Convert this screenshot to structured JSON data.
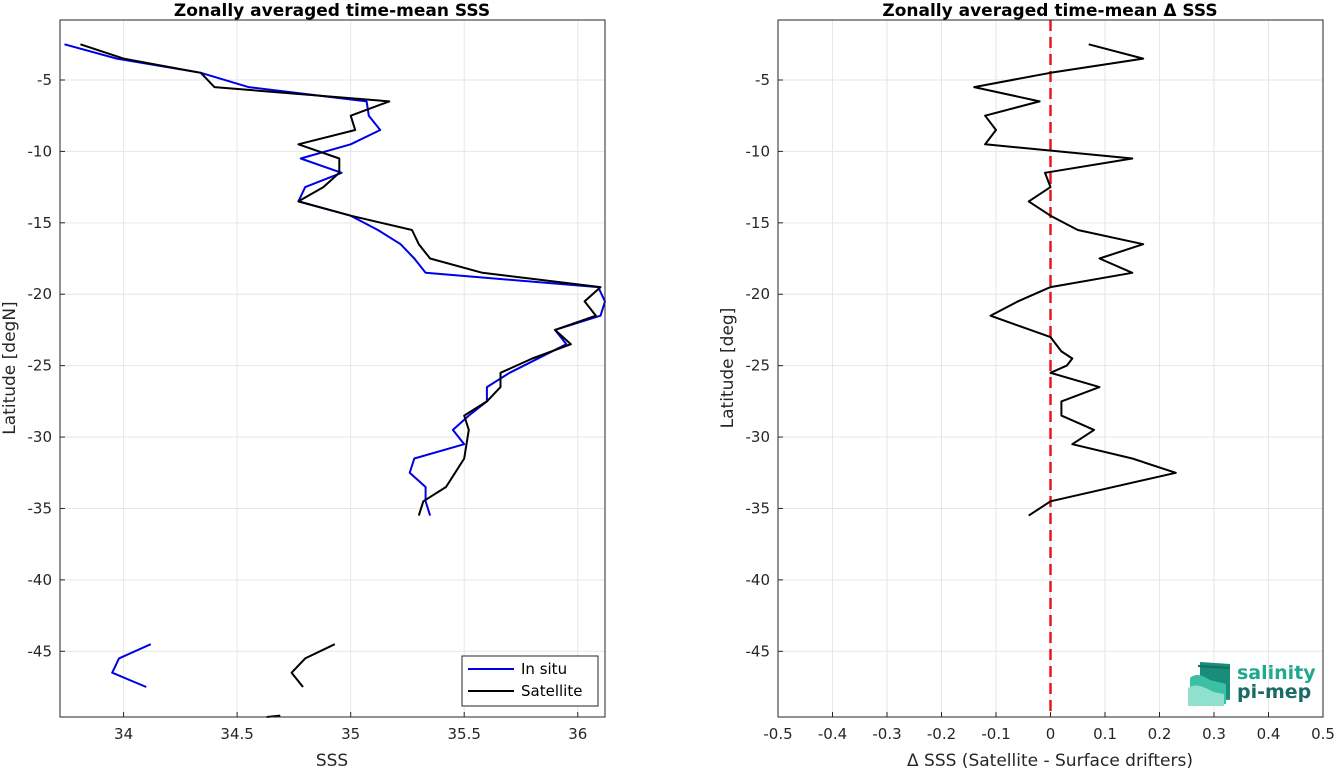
{
  "chart_data": [
    {
      "type": "line",
      "title": "Zonally averaged time-mean SSS",
      "xlabel": "SSS",
      "ylabel": "Latitude [degN]",
      "xlim": [
        33.72,
        36.12
      ],
      "ylim": [
        -49.6,
        -0.8
      ],
      "xticks": [
        34,
        34.5,
        35,
        35.5,
        36
      ],
      "xtick_labels": [
        "34",
        "34.5",
        "35",
        "35.5",
        "36"
      ],
      "yticks": [
        -5,
        -10,
        -15,
        -20,
        -25,
        -30,
        -35,
        -40,
        -45
      ],
      "ytick_labels": [
        "-5",
        "-10",
        "-15",
        "-20",
        "-25",
        "-30",
        "-35",
        "-40",
        "-45"
      ],
      "grid": true,
      "legend_position": "bottom-right",
      "series": [
        {
          "name": "In situ",
          "color": "#0000e6",
          "segments": [
            [
              [
                33.74,
                -2.5
              ],
              [
                33.97,
                -3.5
              ],
              [
                34.34,
                -4.5
              ],
              [
                34.55,
                -5.5
              ],
              [
                35.07,
                -6.5
              ],
              [
                35.08,
                -7.5
              ],
              [
                35.13,
                -8.5
              ],
              [
                35.0,
                -9.5
              ],
              [
                34.78,
                -10.5
              ],
              [
                34.96,
                -11.5
              ],
              [
                34.8,
                -12.5
              ],
              [
                34.77,
                -13.5
              ],
              [
                35.0,
                -14.5
              ],
              [
                35.12,
                -15.5
              ],
              [
                35.22,
                -16.5
              ],
              [
                35.28,
                -17.5
              ],
              [
                35.33,
                -18.5
              ],
              [
                36.09,
                -19.5
              ],
              [
                36.12,
                -20.5
              ],
              [
                36.1,
                -21.5
              ],
              [
                35.9,
                -22.5
              ],
              [
                35.95,
                -23.5
              ],
              [
                35.7,
                -25.5
              ],
              [
                35.6,
                -26.5
              ],
              [
                35.6,
                -27.5
              ],
              [
                35.52,
                -28.5
              ],
              [
                35.45,
                -29.5
              ],
              [
                35.5,
                -30.5
              ],
              [
                35.28,
                -31.5
              ],
              [
                35.26,
                -32.5
              ],
              [
                35.33,
                -33.5
              ],
              [
                35.33,
                -34.5
              ],
              [
                35.35,
                -35.5
              ]
            ],
            [
              [
                34.12,
                -44.5
              ],
              [
                33.98,
                -45.5
              ],
              [
                33.95,
                -46.5
              ],
              [
                34.1,
                -47.5
              ]
            ]
          ]
        },
        {
          "name": "Satellite",
          "color": "#000000",
          "segments": [
            [
              [
                33.81,
                -2.5
              ],
              [
                34.0,
                -3.5
              ],
              [
                34.34,
                -4.5
              ],
              [
                34.4,
                -5.5
              ],
              [
                35.17,
                -6.5
              ],
              [
                35.0,
                -7.5
              ],
              [
                35.02,
                -8.5
              ],
              [
                34.77,
                -9.5
              ],
              [
                34.95,
                -10.5
              ],
              [
                34.95,
                -11.5
              ],
              [
                34.88,
                -12.5
              ],
              [
                34.77,
                -13.5
              ],
              [
                35.0,
                -14.5
              ],
              [
                35.27,
                -15.5
              ],
              [
                35.3,
                -16.5
              ],
              [
                35.35,
                -17.5
              ],
              [
                35.58,
                -18.5
              ],
              [
                36.1,
                -19.5
              ],
              [
                36.03,
                -20.5
              ],
              [
                36.08,
                -21.5
              ],
              [
                35.9,
                -22.5
              ],
              [
                35.97,
                -23.5
              ],
              [
                35.8,
                -24.5
              ],
              [
                35.66,
                -25.5
              ],
              [
                35.66,
                -26.5
              ],
              [
                35.6,
                -27.5
              ],
              [
                35.5,
                -28.5
              ],
              [
                35.52,
                -29.5
              ],
              [
                35.51,
                -30.5
              ],
              [
                35.5,
                -31.5
              ],
              [
                35.46,
                -32.5
              ],
              [
                35.42,
                -33.5
              ],
              [
                35.32,
                -34.5
              ],
              [
                35.3,
                -35.5
              ]
            ],
            [
              [
                34.93,
                -44.5
              ],
              [
                34.8,
                -45.5
              ],
              [
                34.74,
                -46.5
              ],
              [
                34.79,
                -47.5
              ]
            ],
            [
              [
                34.69,
                -49.5
              ],
              [
                34.63,
                -49.9
              ]
            ]
          ]
        }
      ]
    },
    {
      "type": "line",
      "title": "Zonally averaged time-mean Δ SSS",
      "xlabel": "Δ SSS (Satellite - Surface drifters)",
      "ylabel": "Latitude [deg]",
      "xlim": [
        -0.5,
        0.5
      ],
      "ylim": [
        -49.6,
        -0.8
      ],
      "xticks": [
        -0.5,
        -0.4,
        -0.3,
        -0.2,
        -0.1,
        0,
        0.1,
        0.2,
        0.3,
        0.4,
        0.5
      ],
      "xtick_labels": [
        "-0.5",
        "-0.4",
        "-0.3",
        "-0.2",
        "-0.1",
        "0",
        "0.1",
        "0.2",
        "0.3",
        "0.4",
        "0.5"
      ],
      "yticks": [
        -5,
        -10,
        -15,
        -20,
        -25,
        -30,
        -35,
        -40,
        -45
      ],
      "ytick_labels": [
        "-5",
        "-10",
        "-15",
        "-20",
        "-25",
        "-30",
        "-35",
        "-40",
        "-45"
      ],
      "grid": true,
      "reference_line": {
        "x": 0,
        "color": "#e61a1a",
        "style": "dashed"
      },
      "series": [
        {
          "color": "#000000",
          "segments": [
            [
              [
                0.07,
                -2.5
              ],
              [
                0.17,
                -3.5
              ],
              [
                0.0,
                -4.5
              ],
              [
                -0.14,
                -5.5
              ],
              [
                -0.02,
                -6.5
              ],
              [
                -0.12,
                -7.5
              ],
              [
                -0.1,
                -8.5
              ],
              [
                -0.12,
                -9.5
              ],
              [
                0.15,
                -10.5
              ],
              [
                -0.01,
                -11.5
              ],
              [
                0.0,
                -12.5
              ],
              [
                -0.04,
                -13.5
              ],
              [
                0.0,
                -14.5
              ],
              [
                0.05,
                -15.5
              ],
              [
                0.17,
                -16.5
              ],
              [
                0.09,
                -17.5
              ],
              [
                0.15,
                -18.5
              ],
              [
                0.0,
                -19.5
              ],
              [
                -0.06,
                -20.5
              ],
              [
                -0.11,
                -21.5
              ],
              [
                0.0,
                -23.0
              ],
              [
                0.02,
                -24.0
              ],
              [
                0.04,
                -24.5
              ],
              [
                0.03,
                -25.0
              ],
              [
                0.0,
                -25.5
              ],
              [
                0.09,
                -26.5
              ],
              [
                0.02,
                -27.5
              ],
              [
                0.02,
                -28.5
              ],
              [
                0.08,
                -29.5
              ],
              [
                0.04,
                -30.5
              ],
              [
                0.15,
                -31.5
              ],
              [
                0.23,
                -32.5
              ],
              [
                0.0,
                -34.5
              ],
              [
                -0.04,
                -35.5
              ]
            ]
          ]
        }
      ]
    }
  ],
  "logo": {
    "line1": "salinity",
    "line2": "pi-mep",
    "color1": "#1fa98f",
    "color2": "#1a6b66"
  }
}
